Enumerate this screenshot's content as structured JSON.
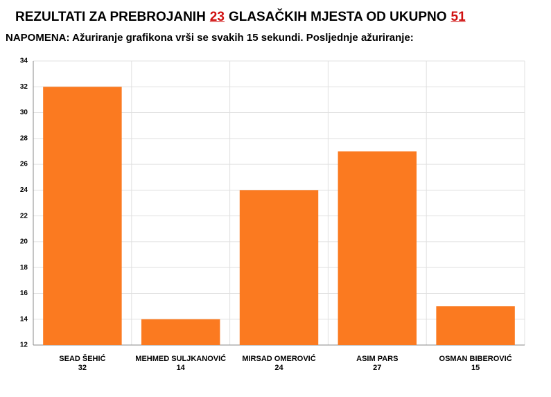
{
  "header": {
    "title_prefix": "REZULTATI ZA PREBROJANIH",
    "counted": "23",
    "title_middle": "GLASAČKIH MJESTA OD UKUPNO",
    "total": "51",
    "note": "NAPOMENA: Ažuriranje grafikona vrši se svakih 15 sekundi. Posljednje ažuriranje:"
  },
  "chart_data": {
    "type": "bar",
    "categories": [
      "SEAD ŠEHIĆ",
      "MEHMED SULJKANOVIĆ",
      "MIRSAD OMEROVIĆ",
      "ASIM PARS",
      "OSMAN BIBEROVIĆ"
    ],
    "values": [
      32,
      14,
      24,
      27,
      15
    ],
    "color": "#fb7a20",
    "ylim": [
      12,
      34
    ],
    "yticks": [
      12,
      14,
      16,
      18,
      20,
      22,
      24,
      26,
      28,
      30,
      32,
      34
    ],
    "grid": true
  }
}
